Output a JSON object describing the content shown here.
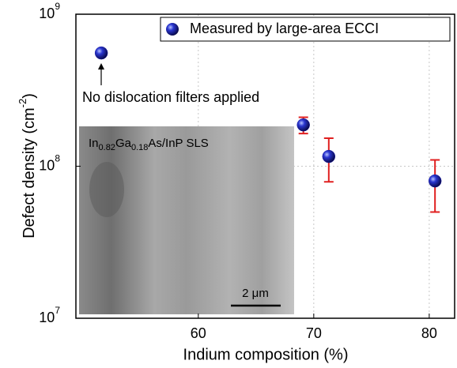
{
  "chart_data": {
    "type": "scatter",
    "xlabel": "Indium composition (%)",
    "ylabel": {
      "text": "Defect density (cm",
      "superscript": "-2",
      "suffix": ")"
    },
    "xlim": [
      49.4,
      82.2
    ],
    "ylim": [
      10000000,
      1000000000
    ],
    "log_y": true,
    "xticks": [
      60,
      70,
      80
    ],
    "yticks": [
      {
        "value": 10000000,
        "label": "10",
        "exponent": "7"
      },
      {
        "value": 100000000,
        "label": "10",
        "exponent": "8"
      },
      {
        "value": 1000000000,
        "label": "10",
        "exponent": "9"
      }
    ],
    "grid": true,
    "series": [
      {
        "name": "Measured by large-area ECCI",
        "color": "#1a1aa8",
        "error_color": "#e02020",
        "x": [
          51.6,
          69.1,
          71.3,
          80.5
        ],
        "values": [
          556000000,
          187000000,
          116000000,
          80000000
        ],
        "errors": [
          30000000,
          23000000,
          37000000,
          30000000
        ]
      }
    ],
    "legend": "upper right",
    "annotation": "No dislocation filters applied",
    "inset": {
      "label": [
        {
          "text": "In"
        },
        {
          "text": "0.82",
          "sub": true
        },
        {
          "text": "Ga"
        },
        {
          "text": "0.18",
          "sub": true
        },
        {
          "text": "As/InP SLS"
        }
      ],
      "scale_bar": "2 μm"
    }
  }
}
